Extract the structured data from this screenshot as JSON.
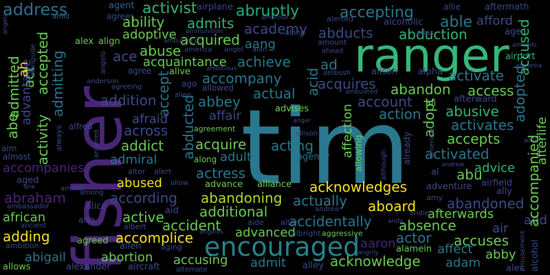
{
  "palette": {
    "background": "#000000",
    "purple_dark": "#440154",
    "purple": "#482677",
    "indigo": "#3e4a89",
    "blue": "#31688e",
    "teal": "#26828e",
    "green_teal": "#1f9e89",
    "green": "#35b779",
    "lime": "#6ece58",
    "yellow_green": "#b5de2b",
    "yellow": "#fde725"
  },
  "words": [
    {
      "text": "tim",
      "color": "#2a788e"
    },
    {
      "text": "fisher",
      "color": "#482677"
    },
    {
      "text": "ranger",
      "color": "#35b779"
    },
    {
      "text": "encouraged",
      "color": "#26828e"
    },
    {
      "text": "address",
      "color": "#2d708e"
    },
    {
      "text": "activist",
      "color": "#35b779"
    },
    {
      "text": "abruptly",
      "color": "#27ad81"
    },
    {
      "text": "accepting",
      "color": "#2a788e"
    },
    {
      "text": "able",
      "color": "#2a788e"
    },
    {
      "text": "agent",
      "color": "#31688e"
    },
    {
      "text": "airplane",
      "color": "#404688"
    },
    {
      "text": "allie",
      "color": "#3e4a89"
    },
    {
      "text": "aftermath",
      "color": "#3e4a89"
    },
    {
      "text": "agrees",
      "color": "#3e4a89"
    },
    {
      "text": "ambrose",
      "color": "#3e4a89"
    },
    {
      "text": "amid",
      "color": "#31688e"
    },
    {
      "text": "alerted",
      "color": "#3e4a89"
    },
    {
      "text": "alcoholic",
      "color": "#404688"
    },
    {
      "text": "afford",
      "color": "#3e4a89"
    },
    {
      "text": "ability",
      "color": "#6ece58"
    },
    {
      "text": "admits",
      "color": "#35b779"
    },
    {
      "text": "academy",
      "color": "#3e4a89"
    },
    {
      "text": "abducts",
      "color": "#3e4a89"
    },
    {
      "text": "abduction",
      "color": "#35b779"
    },
    {
      "text": "age",
      "color": "#3e4a89"
    },
    {
      "text": "alias",
      "color": "#3e4a89"
    },
    {
      "text": "accused",
      "color": "#35b779"
    },
    {
      "text": "adoptive",
      "color": "#6ece58"
    },
    {
      "text": "acquired",
      "color": "#6ece58"
    },
    {
      "text": "alone",
      "color": "#3e4a89"
    },
    {
      "text": "amount",
      "color": "#3e4a89"
    },
    {
      "text": "ammunition",
      "color": "#3e4a89"
    },
    {
      "text": "ambulance",
      "color": "#3e4a89"
    },
    {
      "text": "alex",
      "color": "#6ece58"
    },
    {
      "text": "align",
      "color": "#6ece58"
    },
    {
      "text": "aang",
      "color": "#2a788e"
    },
    {
      "text": "america",
      "color": "#3e4a89"
    },
    {
      "text": "angel",
      "color": "#3e4a89"
    },
    {
      "text": "alan",
      "color": "#3e4a89"
    },
    {
      "text": "amends",
      "color": "#3e4a89"
    },
    {
      "text": "airport",
      "color": "#35b779"
    },
    {
      "text": "abuse",
      "color": "#6ece58"
    },
    {
      "text": "achieve",
      "color": "#2a788e"
    },
    {
      "text": "ahead",
      "color": "#3e4a89"
    },
    {
      "text": "amnesia",
      "color": "#3e4a89"
    },
    {
      "text": "acquaintance",
      "color": "#6ece58"
    },
    {
      "text": "ad",
      "color": "#2a788e"
    },
    {
      "text": "activate",
      "color": "#2a788e"
    },
    {
      "text": "ace",
      "color": "#3e4a89"
    },
    {
      "text": "agree",
      "color": "#3e4a89"
    },
    {
      "text": "ambitious",
      "color": "#3e4a89"
    },
    {
      "text": "alive",
      "color": "#6ece58"
    },
    {
      "text": "ambush",
      "color": "#3e4a89"
    },
    {
      "text": "alison",
      "color": "#3e4a89"
    },
    {
      "text": "alpha",
      "color": "#3e4a89"
    },
    {
      "text": "acquires",
      "color": "#3e4a89"
    },
    {
      "text": "accompany",
      "color": "#2a788e"
    },
    {
      "text": "anderson",
      "color": "#3e4a89"
    },
    {
      "text": "ago",
      "color": "#3e4a89"
    },
    {
      "text": "allowed",
      "color": "#3e4a89"
    },
    {
      "text": "abandon",
      "color": "#6ece58"
    },
    {
      "text": "access",
      "color": "#6ece58"
    },
    {
      "text": "afterward",
      "color": "#3e4a89"
    },
    {
      "text": "agreeing",
      "color": "#3e4a89"
    },
    {
      "text": "alien",
      "color": "#3e4a89"
    },
    {
      "text": "ambushed",
      "color": "#3e4a89"
    },
    {
      "text": "addition",
      "color": "#3e4a89"
    },
    {
      "text": "abbey",
      "color": "#2a788e"
    },
    {
      "text": "actual",
      "color": "#2a788e"
    },
    {
      "text": "account",
      "color": "#3e4a89"
    },
    {
      "text": "ali",
      "color": "#6ece58"
    },
    {
      "text": "abusive",
      "color": "#35b779"
    },
    {
      "text": "affair",
      "color": "#3e4a89"
    },
    {
      "text": "advises",
      "color": "#6ece58"
    },
    {
      "text": "action",
      "color": "#2a788e"
    },
    {
      "text": "activates",
      "color": "#2a788e"
    },
    {
      "text": "afraid",
      "color": "#3e4a89"
    },
    {
      "text": "anger",
      "color": "#3e4a89"
    },
    {
      "text": "across",
      "color": "#3e4a89"
    },
    {
      "text": "agreement",
      "color": "#6ece58"
    },
    {
      "text": "alfred",
      "color": "#3e4a89"
    },
    {
      "text": "acquire",
      "color": "#6ece58"
    },
    {
      "text": "acting",
      "color": "#2a788e"
    },
    {
      "text": "accepts",
      "color": "#6ece58"
    },
    {
      "text": "addict",
      "color": "#6ece58"
    },
    {
      "text": "allison",
      "color": "#3e4a89"
    },
    {
      "text": "admiral",
      "color": "#2a788e"
    },
    {
      "text": "adult",
      "color": "#2a788e"
    },
    {
      "text": "agency",
      "color": "#2a788e"
    },
    {
      "text": "activated",
      "color": "#2a788e"
    },
    {
      "text": "aided",
      "color": "#3e4a89"
    },
    {
      "text": "aim",
      "color": "#3e4a89"
    },
    {
      "text": "almost",
      "color": "#3e4a89"
    },
    {
      "text": "along",
      "color": "#6ece58"
    },
    {
      "text": "accompanies",
      "color": "#482677"
    },
    {
      "text": "alter",
      "color": "#3e4a89"
    },
    {
      "text": "alert",
      "color": "#3e4a89"
    },
    {
      "text": "actress",
      "color": "#2a788e"
    },
    {
      "text": "abu",
      "color": "#6ece58"
    },
    {
      "text": "advice",
      "color": "#35b779"
    },
    {
      "text": "andrew",
      "color": "#3e4a89"
    },
    {
      "text": "al",
      "color": "#3e4a89"
    },
    {
      "text": "aged",
      "color": "#3e4a89"
    },
    {
      "text": "abused",
      "color": "#fde725"
    },
    {
      "text": "allow",
      "color": "#3e4a89"
    },
    {
      "text": "advance",
      "color": "#6ece58"
    },
    {
      "text": "alliance",
      "color": "#6ece58"
    },
    {
      "text": "acknowledges",
      "color": "#fde725"
    },
    {
      "text": "adventure",
      "color": "#3e4a89"
    },
    {
      "text": "airfield",
      "color": "#3e4a89"
    },
    {
      "text": "ana",
      "color": "#3e4a89"
    },
    {
      "text": "amulet",
      "color": "#3e4a89"
    },
    {
      "text": "ally",
      "color": "#3e4a89"
    },
    {
      "text": "abraham",
      "color": "#482677"
    },
    {
      "text": "according",
      "color": "#3e4a89"
    },
    {
      "text": "abandoning",
      "color": "#b5de2b"
    },
    {
      "text": "actually",
      "color": "#2a788e"
    },
    {
      "text": "amy",
      "color": "#3e4a89"
    },
    {
      "text": "abandoned",
      "color": "#3e4a89"
    },
    {
      "text": "among",
      "color": "#3e4a89"
    },
    {
      "text": "ambassador",
      "color": "#3e4a89"
    },
    {
      "text": "alice",
      "color": "#3e4a89"
    },
    {
      "text": "aid",
      "color": "#3e4a89"
    },
    {
      "text": "additional",
      "color": "#6ece58"
    },
    {
      "text": "aboard",
      "color": "#fde725"
    },
    {
      "text": "african",
      "color": "#6ece58"
    },
    {
      "text": "active",
      "color": "#6ece58"
    },
    {
      "text": "also",
      "color": "#3e4a89"
    },
    {
      "text": "andrea",
      "color": "#3e4a89"
    },
    {
      "text": "andie",
      "color": "#3e4a89"
    },
    {
      "text": "afterwards",
      "color": "#6ece58"
    },
    {
      "text": "add",
      "color": "#3e4a89"
    },
    {
      "text": "ancient",
      "color": "#3e4a89"
    },
    {
      "text": "albert",
      "color": "#3e4a89"
    },
    {
      "text": "accident",
      "color": "#6ece58"
    },
    {
      "text": "aide",
      "color": "#3e4a89"
    },
    {
      "text": "altar",
      "color": "#3e4a89"
    },
    {
      "text": "accidentally",
      "color": "#2a788e"
    },
    {
      "text": "andy",
      "color": "#3e4a89"
    },
    {
      "text": "absence",
      "color": "#6ece58"
    },
    {
      "text": "air",
      "color": "#3e4a89"
    },
    {
      "text": "adding",
      "color": "#fde725"
    },
    {
      "text": "accomplice",
      "color": "#fde725"
    },
    {
      "text": "advanced",
      "color": "#6ece58"
    },
    {
      "text": "albright",
      "color": "#3e4a89"
    },
    {
      "text": "actor",
      "color": "#2a788e"
    },
    {
      "text": "accuses",
      "color": "#6ece58"
    },
    {
      "text": "ambition",
      "color": "#3e4a89"
    },
    {
      "text": "agreed",
      "color": "#6ece58"
    },
    {
      "text": "allen",
      "color": "#3e4a89"
    },
    {
      "text": "aging",
      "color": "#3e4a89"
    },
    {
      "text": "angeles",
      "color": "#3e4a89"
    },
    {
      "text": "aggressive",
      "color": "#6ece58"
    },
    {
      "text": "aaron",
      "color": "#482677"
    },
    {
      "text": "affect",
      "color": "#2a788e"
    },
    {
      "text": "abigail",
      "color": "#2a788e"
    },
    {
      "text": "abortion",
      "color": "#6ece58"
    },
    {
      "text": "angrily",
      "color": "#3e4a89"
    },
    {
      "text": "alamein",
      "color": "#6ece58"
    },
    {
      "text": "abby",
      "color": "#6ece58"
    },
    {
      "text": "accusing",
      "color": "#6ece58"
    },
    {
      "text": "admit",
      "color": "#2a788e"
    },
    {
      "text": "acknowledge",
      "color": "#6ece58"
    },
    {
      "text": "adam",
      "color": "#2a788e"
    },
    {
      "text": "allows",
      "color": "#6ece58"
    },
    {
      "text": "alexander",
      "color": "#3e4a89"
    },
    {
      "text": "aircraft",
      "color": "#3e4a89"
    },
    {
      "text": "alternate",
      "color": "#3e4a89"
    },
    {
      "text": "alley",
      "color": "#3e4a89"
    },
    {
      "text": "alec",
      "color": "#3e4a89"
    },
    {
      "text": "amusement",
      "color": "#3e4a89"
    },
    {
      "text": "alcohol",
      "color": "#3e4a89"
    },
    {
      "text": "act",
      "color": "#6ece58"
    },
    {
      "text": "admitted",
      "color": "#6ece58"
    },
    {
      "text": "advantage",
      "color": "#3e4a89"
    },
    {
      "text": "alongside",
      "color": "#3e4a89"
    },
    {
      "text": "angela",
      "color": "#3e4a89"
    },
    {
      "text": "accepted",
      "color": "#6ece58"
    },
    {
      "text": "admitting",
      "color": "#2a788e"
    },
    {
      "text": "activity",
      "color": "#6ece58"
    },
    {
      "text": "abe",
      "color": "#6ece58"
    },
    {
      "text": "ah",
      "color": "#fde725"
    },
    {
      "text": "always",
      "color": "#3e4a89"
    },
    {
      "text": "angelo",
      "color": "#3e4a89"
    },
    {
      "text": "accept",
      "color": "#2a788e"
    },
    {
      "text": "abducted",
      "color": "#2a788e"
    },
    {
      "text": "acid",
      "color": "#2a788e"
    },
    {
      "text": "affection",
      "color": "#6ece58"
    },
    {
      "text": "allowing",
      "color": "#6ece58"
    },
    {
      "text": "although",
      "color": "#3e4a89"
    },
    {
      "text": "already",
      "color": "#3e4a89"
    },
    {
      "text": "adopt",
      "color": "#6ece58"
    },
    {
      "text": "adopted",
      "color": "#2a788e"
    },
    {
      "text": "accompanied",
      "color": "#6ece58"
    },
    {
      "text": "afterlife",
      "color": "#6ece58"
    },
    {
      "text": "american",
      "color": "#3e4a89"
    },
    {
      "text": "angered",
      "color": "#3e4a89"
    }
  ]
}
